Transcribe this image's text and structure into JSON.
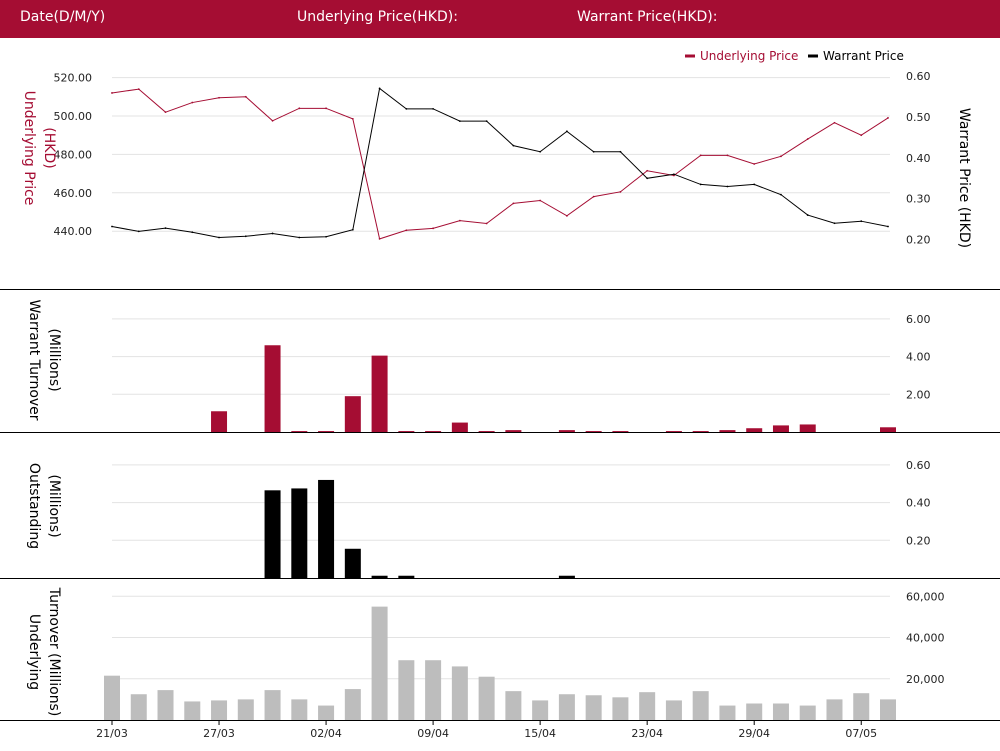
{
  "header": {
    "date_label": "Date(D/M/Y)",
    "underlying_label": "Underlying Price(HKD):",
    "warrant_label": "Warrant Price(HKD):"
  },
  "colors": {
    "header_bg": "#a50d33",
    "underlying": "#a50d33",
    "warrant": "#000000",
    "outstanding": "#000000",
    "underlying_turnover": "#bdbdbd",
    "grid": "#e3e3e3"
  },
  "chart_data": [
    {
      "type": "line",
      "legend_position": "top-right",
      "series": [
        {
          "name": "Underlying Price",
          "axis": "left",
          "values": [
            512,
            514,
            502,
            507,
            509.5,
            510,
            497.5,
            504,
            504,
            498.5,
            436,
            440.5,
            441.5,
            445.5,
            444,
            454.5,
            456,
            448,
            458,
            460.5,
            471.5,
            469,
            479.5,
            479.5,
            475,
            479,
            488,
            496.5,
            490,
            499
          ]
        },
        {
          "name": "Warrant Price",
          "axis": "right",
          "values": [
            0.232,
            0.22,
            0.228,
            0.218,
            0.205,
            0.208,
            0.215,
            0.205,
            0.207,
            0.224,
            0.57,
            0.52,
            0.52,
            0.49,
            0.49,
            0.43,
            0.415,
            0.465,
            0.415,
            0.415,
            0.35,
            0.36,
            0.335,
            0.33,
            0.335,
            0.31,
            0.26,
            0.24,
            0.245,
            0.232
          ]
        }
      ],
      "ylabel": "Underlying Price (HKD)",
      "y2label": "Warrant  Price (HKD)",
      "ylim": [
        425,
        525
      ],
      "y2lim": [
        0.15,
        0.62
      ],
      "yticks": [
        "520.00",
        "500.00",
        "480.00",
        "460.00",
        "440.00"
      ],
      "y2ticks": [
        "0.60",
        "0.50",
        "0.40",
        "0.30",
        "0.20"
      ]
    },
    {
      "type": "bar",
      "name": "Warrant Turnover",
      "ylabel": "Warrant  Turnover (Millions)",
      "ylim": [
        0,
        7
      ],
      "yticks": [
        "6.00",
        "4.00",
        "2.00"
      ],
      "values": [
        0,
        0,
        0,
        0,
        1.1,
        0,
        4.6,
        0.05,
        0.05,
        1.9,
        4.05,
        0.05,
        0.05,
        0.5,
        0.05,
        0.1,
        0,
        0.1,
        0.05,
        0.05,
        0,
        0.05,
        0.05,
        0.1,
        0.2,
        0.35,
        0.4,
        0,
        0,
        0.25
      ]
    },
    {
      "type": "bar",
      "name": "Outstanding",
      "ylabel": "Outstanding (Millions)",
      "ylim": [
        0,
        0.7
      ],
      "yticks": [
        "0.60",
        "0.40",
        "0.20"
      ],
      "values": [
        0,
        0,
        0,
        0,
        0,
        0,
        0.465,
        0.475,
        0.52,
        0.155,
        0.012,
        0.012,
        0,
        0,
        0,
        0,
        0,
        0.012,
        0,
        0,
        0,
        0,
        0,
        0,
        0,
        0,
        0,
        0,
        0,
        0
      ]
    },
    {
      "type": "bar",
      "name": "Underlying Turnover",
      "ylabel": "Underlying Turnover (Millions)",
      "ylim": [
        0,
        65000
      ],
      "yticks": [
        "60,000",
        "40,000",
        "20,000"
      ],
      "values": [
        21500,
        12500,
        14500,
        9000,
        9500,
        10000,
        14500,
        10000,
        7000,
        15000,
        55000,
        29000,
        29000,
        26000,
        21000,
        14000,
        9500,
        12500,
        12000,
        11000,
        13500,
        9500,
        14000,
        7000,
        8000,
        8000,
        7000,
        10000,
        13000,
        10000
      ]
    }
  ],
  "x_tick_labels": [
    "21/03",
    "27/03",
    "02/04",
    "09/04",
    "15/04",
    "23/04",
    "29/04",
    "07/05"
  ],
  "x_tick_indices": [
    0,
    4,
    8,
    12,
    16,
    20,
    24,
    28
  ]
}
